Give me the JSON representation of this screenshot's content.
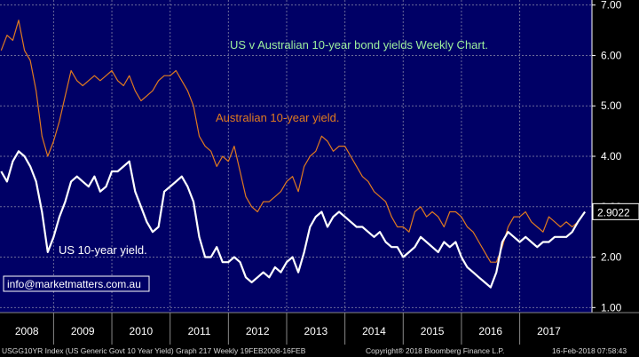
{
  "chart_data": {
    "type": "line",
    "title": "US v Australian 10-year bond yields Weekly Chart.",
    "years": [
      "2008",
      "2009",
      "2010",
      "2011",
      "2012",
      "2013",
      "2014",
      "2015",
      "2016",
      "2017"
    ],
    "yticks": [
      "7.00",
      "6.00",
      "5.00",
      "4.00",
      "3.00",
      "2.00",
      "1.00"
    ],
    "ylim": [
      0.9,
      7.1
    ],
    "xlim": [
      2008.08,
      2018.24
    ],
    "grid": true,
    "last_value_label": "2.9022",
    "series": [
      {
        "name": "Australian 10-year yield.",
        "color": "#e07a1f",
        "x": [
          2008.1,
          2008.2,
          2008.3,
          2008.4,
          2008.5,
          2008.6,
          2008.7,
          2008.8,
          2008.9,
          2009.0,
          2009.1,
          2009.2,
          2009.3,
          2009.4,
          2009.5,
          2009.6,
          2009.7,
          2009.8,
          2009.9,
          2010.0,
          2010.1,
          2010.2,
          2010.3,
          2010.4,
          2010.5,
          2010.6,
          2010.7,
          2010.8,
          2010.9,
          2011.0,
          2011.1,
          2011.2,
          2011.3,
          2011.4,
          2011.5,
          2011.6,
          2011.7,
          2011.8,
          2011.9,
          2012.0,
          2012.1,
          2012.2,
          2012.3,
          2012.4,
          2012.5,
          2012.6,
          2012.7,
          2012.8,
          2012.9,
          2013.0,
          2013.1,
          2013.2,
          2013.3,
          2013.4,
          2013.5,
          2013.6,
          2013.7,
          2013.8,
          2013.9,
          2014.0,
          2014.1,
          2014.2,
          2014.3,
          2014.4,
          2014.5,
          2014.6,
          2014.7,
          2014.8,
          2014.9,
          2015.0,
          2015.1,
          2015.2,
          2015.3,
          2015.4,
          2015.5,
          2015.6,
          2015.7,
          2015.8,
          2015.9,
          2016.0,
          2016.1,
          2016.2,
          2016.3,
          2016.4,
          2016.5,
          2016.6,
          2016.7,
          2016.8,
          2016.9,
          2017.0,
          2017.1,
          2017.2,
          2017.3,
          2017.4,
          2017.5,
          2017.6,
          2017.7,
          2017.8,
          2017.9,
          2018.0,
          2018.12
        ],
        "values": [
          6.1,
          6.4,
          6.3,
          6.7,
          6.1,
          5.9,
          5.3,
          4.4,
          4.0,
          4.3,
          4.7,
          5.2,
          5.7,
          5.5,
          5.4,
          5.5,
          5.6,
          5.5,
          5.6,
          5.7,
          5.5,
          5.4,
          5.6,
          5.3,
          5.1,
          5.2,
          5.3,
          5.5,
          5.6,
          5.6,
          5.7,
          5.5,
          5.3,
          5.0,
          4.4,
          4.2,
          4.1,
          3.8,
          4.0,
          3.9,
          4.2,
          3.7,
          3.2,
          3.0,
          2.9,
          3.1,
          3.1,
          3.2,
          3.3,
          3.5,
          3.6,
          3.3,
          3.8,
          4.0,
          4.1,
          4.4,
          4.3,
          4.1,
          4.2,
          4.2,
          4.0,
          3.8,
          3.6,
          3.5,
          3.3,
          3.2,
          3.1,
          2.8,
          2.6,
          2.6,
          2.5,
          2.9,
          3.0,
          2.8,
          2.9,
          2.8,
          2.6,
          2.9,
          2.9,
          2.8,
          2.6,
          2.5,
          2.3,
          2.1,
          1.9,
          1.9,
          2.2,
          2.6,
          2.8,
          2.8,
          2.9,
          2.7,
          2.6,
          2.5,
          2.8,
          2.7,
          2.6,
          2.7,
          2.6,
          2.7,
          2.9
        ]
      },
      {
        "name": "US 10-year yield.",
        "color": "#ffffff",
        "x": [
          2008.1,
          2008.2,
          2008.3,
          2008.4,
          2008.5,
          2008.6,
          2008.7,
          2008.8,
          2008.9,
          2009.0,
          2009.1,
          2009.2,
          2009.3,
          2009.4,
          2009.5,
          2009.6,
          2009.7,
          2009.8,
          2009.9,
          2010.0,
          2010.1,
          2010.2,
          2010.3,
          2010.4,
          2010.5,
          2010.6,
          2010.7,
          2010.8,
          2010.9,
          2011.0,
          2011.1,
          2011.2,
          2011.3,
          2011.4,
          2011.5,
          2011.6,
          2011.7,
          2011.8,
          2011.9,
          2012.0,
          2012.1,
          2012.2,
          2012.3,
          2012.4,
          2012.5,
          2012.6,
          2012.7,
          2012.8,
          2012.9,
          2013.0,
          2013.1,
          2013.2,
          2013.3,
          2013.4,
          2013.5,
          2013.6,
          2013.7,
          2013.8,
          2013.9,
          2014.0,
          2014.1,
          2014.2,
          2014.3,
          2014.4,
          2014.5,
          2014.6,
          2014.7,
          2014.8,
          2014.9,
          2015.0,
          2015.1,
          2015.2,
          2015.3,
          2015.4,
          2015.5,
          2015.6,
          2015.7,
          2015.8,
          2015.9,
          2016.0,
          2016.1,
          2016.2,
          2016.3,
          2016.4,
          2016.5,
          2016.6,
          2016.7,
          2016.8,
          2016.9,
          2017.0,
          2017.1,
          2017.2,
          2017.3,
          2017.4,
          2017.5,
          2017.6,
          2017.7,
          2017.8,
          2017.9,
          2018.0,
          2018.12
        ],
        "values": [
          3.7,
          3.5,
          3.9,
          4.1,
          4.0,
          3.8,
          3.5,
          2.9,
          2.1,
          2.4,
          2.8,
          3.1,
          3.5,
          3.6,
          3.5,
          3.4,
          3.6,
          3.3,
          3.4,
          3.7,
          3.7,
          3.8,
          3.9,
          3.3,
          3.0,
          2.7,
          2.5,
          2.6,
          3.3,
          3.4,
          3.5,
          3.6,
          3.4,
          3.1,
          2.4,
          2.0,
          2.0,
          2.2,
          1.9,
          1.9,
          2.0,
          1.9,
          1.6,
          1.5,
          1.6,
          1.7,
          1.6,
          1.8,
          1.7,
          1.9,
          2.0,
          1.7,
          2.1,
          2.6,
          2.8,
          2.9,
          2.6,
          2.8,
          2.9,
          2.8,
          2.7,
          2.6,
          2.6,
          2.5,
          2.4,
          2.5,
          2.3,
          2.2,
          2.2,
          2.0,
          2.1,
          2.2,
          2.4,
          2.3,
          2.2,
          2.1,
          2.3,
          2.2,
          2.3,
          2.0,
          1.8,
          1.7,
          1.6,
          1.5,
          1.4,
          1.7,
          2.3,
          2.5,
          2.4,
          2.3,
          2.4,
          2.3,
          2.2,
          2.3,
          2.3,
          2.4,
          2.4,
          2.4,
          2.5,
          2.7,
          2.9
        ]
      }
    ],
    "watermark": "info@marketmatters.com.au"
  },
  "footer": {
    "left": "USGG10YR Index (US Generic Govt 10 Year Yield) Graph 217  Weekly 19FEB2008-16FEB",
    "center": "Copyright® 2018 Bloomberg Finance L.P.",
    "right": "16-Feb-2018 07:58:43"
  },
  "colors": {
    "background": "#000066",
    "grid": "#6a6a9a",
    "title": "#9ef09e",
    "australian_label": "#e07a1f",
    "us_label": "#ffffff",
    "axis_bg": "#000000",
    "axis_text": "#ffffff"
  }
}
